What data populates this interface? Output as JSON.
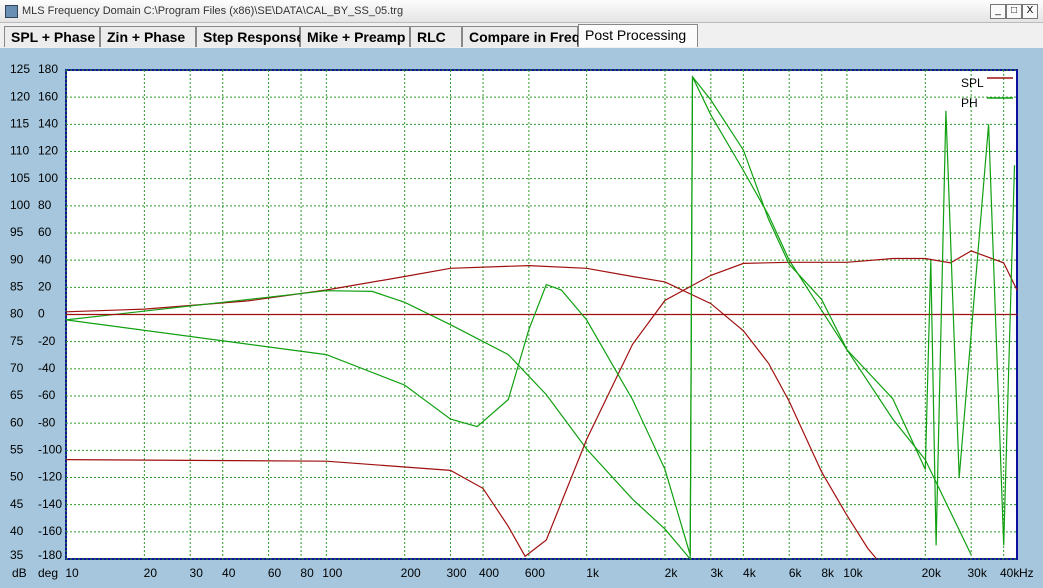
{
  "window": {
    "title": "MLS Frequency Domain  C:\\Program Files (x86)\\SE\\DATA\\CAL_BY_SS_05.trg",
    "tabs": [
      "SPL + Phase",
      "Zin + Phase",
      "Step Response",
      "Mike + Preamp",
      "RLC",
      "Compare in Freq",
      "Post Processing"
    ],
    "active_tab": 6
  },
  "chart_data": {
    "type": "line",
    "x_scale": "log",
    "grid": true,
    "legend": "upper right",
    "x_label": "Hz",
    "y_label": "dB",
    "y2_label": "deg",
    "xlim": [
      10,
      45000
    ],
    "xticks": [
      10,
      20,
      30,
      40,
      60,
      80,
      100,
      200,
      300,
      400,
      600,
      {
        "value": 1000,
        "label": "1k"
      },
      {
        "value": 2000,
        "label": "2k"
      },
      {
        "value": 3000,
        "label": "3k"
      },
      {
        "value": 4000,
        "label": "4k"
      },
      {
        "value": 6000,
        "label": "6k"
      },
      {
        "value": 8000,
        "label": "8k"
      },
      {
        "value": 10000,
        "label": "10k"
      },
      {
        "value": 20000,
        "label": "20k"
      },
      {
        "value": 30000,
        "label": "30k"
      },
      {
        "value": 40000,
        "label": "40k"
      }
    ],
    "ylim": [
      35,
      125
    ],
    "yticks": [
      35,
      40,
      45,
      50,
      55,
      60,
      65,
      70,
      75,
      80,
      85,
      90,
      95,
      100,
      105,
      110,
      115,
      120,
      125
    ],
    "y2lim": [
      -180,
      180
    ],
    "y2ticks": [
      -180,
      -160,
      -140,
      -120,
      -100,
      -80,
      -60,
      -40,
      -20,
      0,
      20,
      40,
      60,
      80,
      100,
      120,
      140,
      160,
      180
    ],
    "series": [
      {
        "name": "SPL",
        "color": "#a01010",
        "x": [
          10,
          20,
          50,
          100,
          200,
          300,
          600,
          1000,
          1500,
          2000,
          3000,
          4000,
          5000,
          6000,
          8000,
          10000,
          12000,
          13000
        ],
        "values": [
          80.5,
          81,
          82.5,
          84.5,
          87,
          88.5,
          89,
          88.5,
          87,
          86,
          82,
          77,
          71,
          64,
          51,
          43,
          37,
          35
        ]
      },
      {
        "name": "PH",
        "color": "#10a010",
        "axis": "y2",
        "x": [
          10,
          100,
          150,
          200,
          300,
          500,
          700,
          1000,
          1500,
          2000,
          2500,
          2550,
          3000,
          4000,
          5000,
          6000,
          8000,
          10000,
          15000,
          20000,
          30000
        ],
        "values": [
          -4,
          17.5,
          17,
          9,
          -7.5,
          -29.5,
          -59,
          -99,
          -136,
          -158,
          -180,
          175,
          147,
          106,
          73,
          40,
          3,
          -26,
          -77,
          -107,
          -177
        ]
      },
      {
        "color": "#a01010",
        "x": [
          10,
          100,
          300,
          400,
          500,
          580,
          700,
          1000,
          1500,
          2000,
          3000,
          4000,
          6000,
          10000,
          15000,
          20000,
          25000,
          30000,
          40000,
          45000
        ],
        "values": [
          53.3,
          53,
          51.3,
          48,
          41,
          35.5,
          38.5,
          57,
          74.5,
          82.6,
          87.2,
          89.4,
          89.6,
          89.6,
          90.3,
          90.3,
          89.5,
          91.7,
          89.5,
          84.5
        ]
      },
      {
        "color": "#a01010",
        "x": [
          10,
          45000
        ],
        "values": [
          80,
          80
        ]
      },
      {
        "color": "#10a010",
        "axis": "y2",
        "x": [
          10,
          100,
          200,
          300,
          380,
          500,
          600,
          700,
          800,
          1000,
          1500,
          2000,
          2500,
          2550,
          3000,
          4000,
          5000,
          6000,
          8000,
          10000,
          15000,
          20000,
          21000,
          22000,
          24000,
          27000,
          35000,
          40000,
          44000
        ],
        "values": [
          -4,
          -29.5,
          -52,
          -77,
          -82.5,
          -62.6,
          -11,
          22,
          18,
          -4,
          -62.6,
          -114,
          -177,
          175,
          158,
          121,
          70,
          37,
          11,
          -26,
          -62,
          -114,
          40,
          -170,
          150,
          -120,
          140,
          -170,
          110
        ]
      }
    ]
  }
}
